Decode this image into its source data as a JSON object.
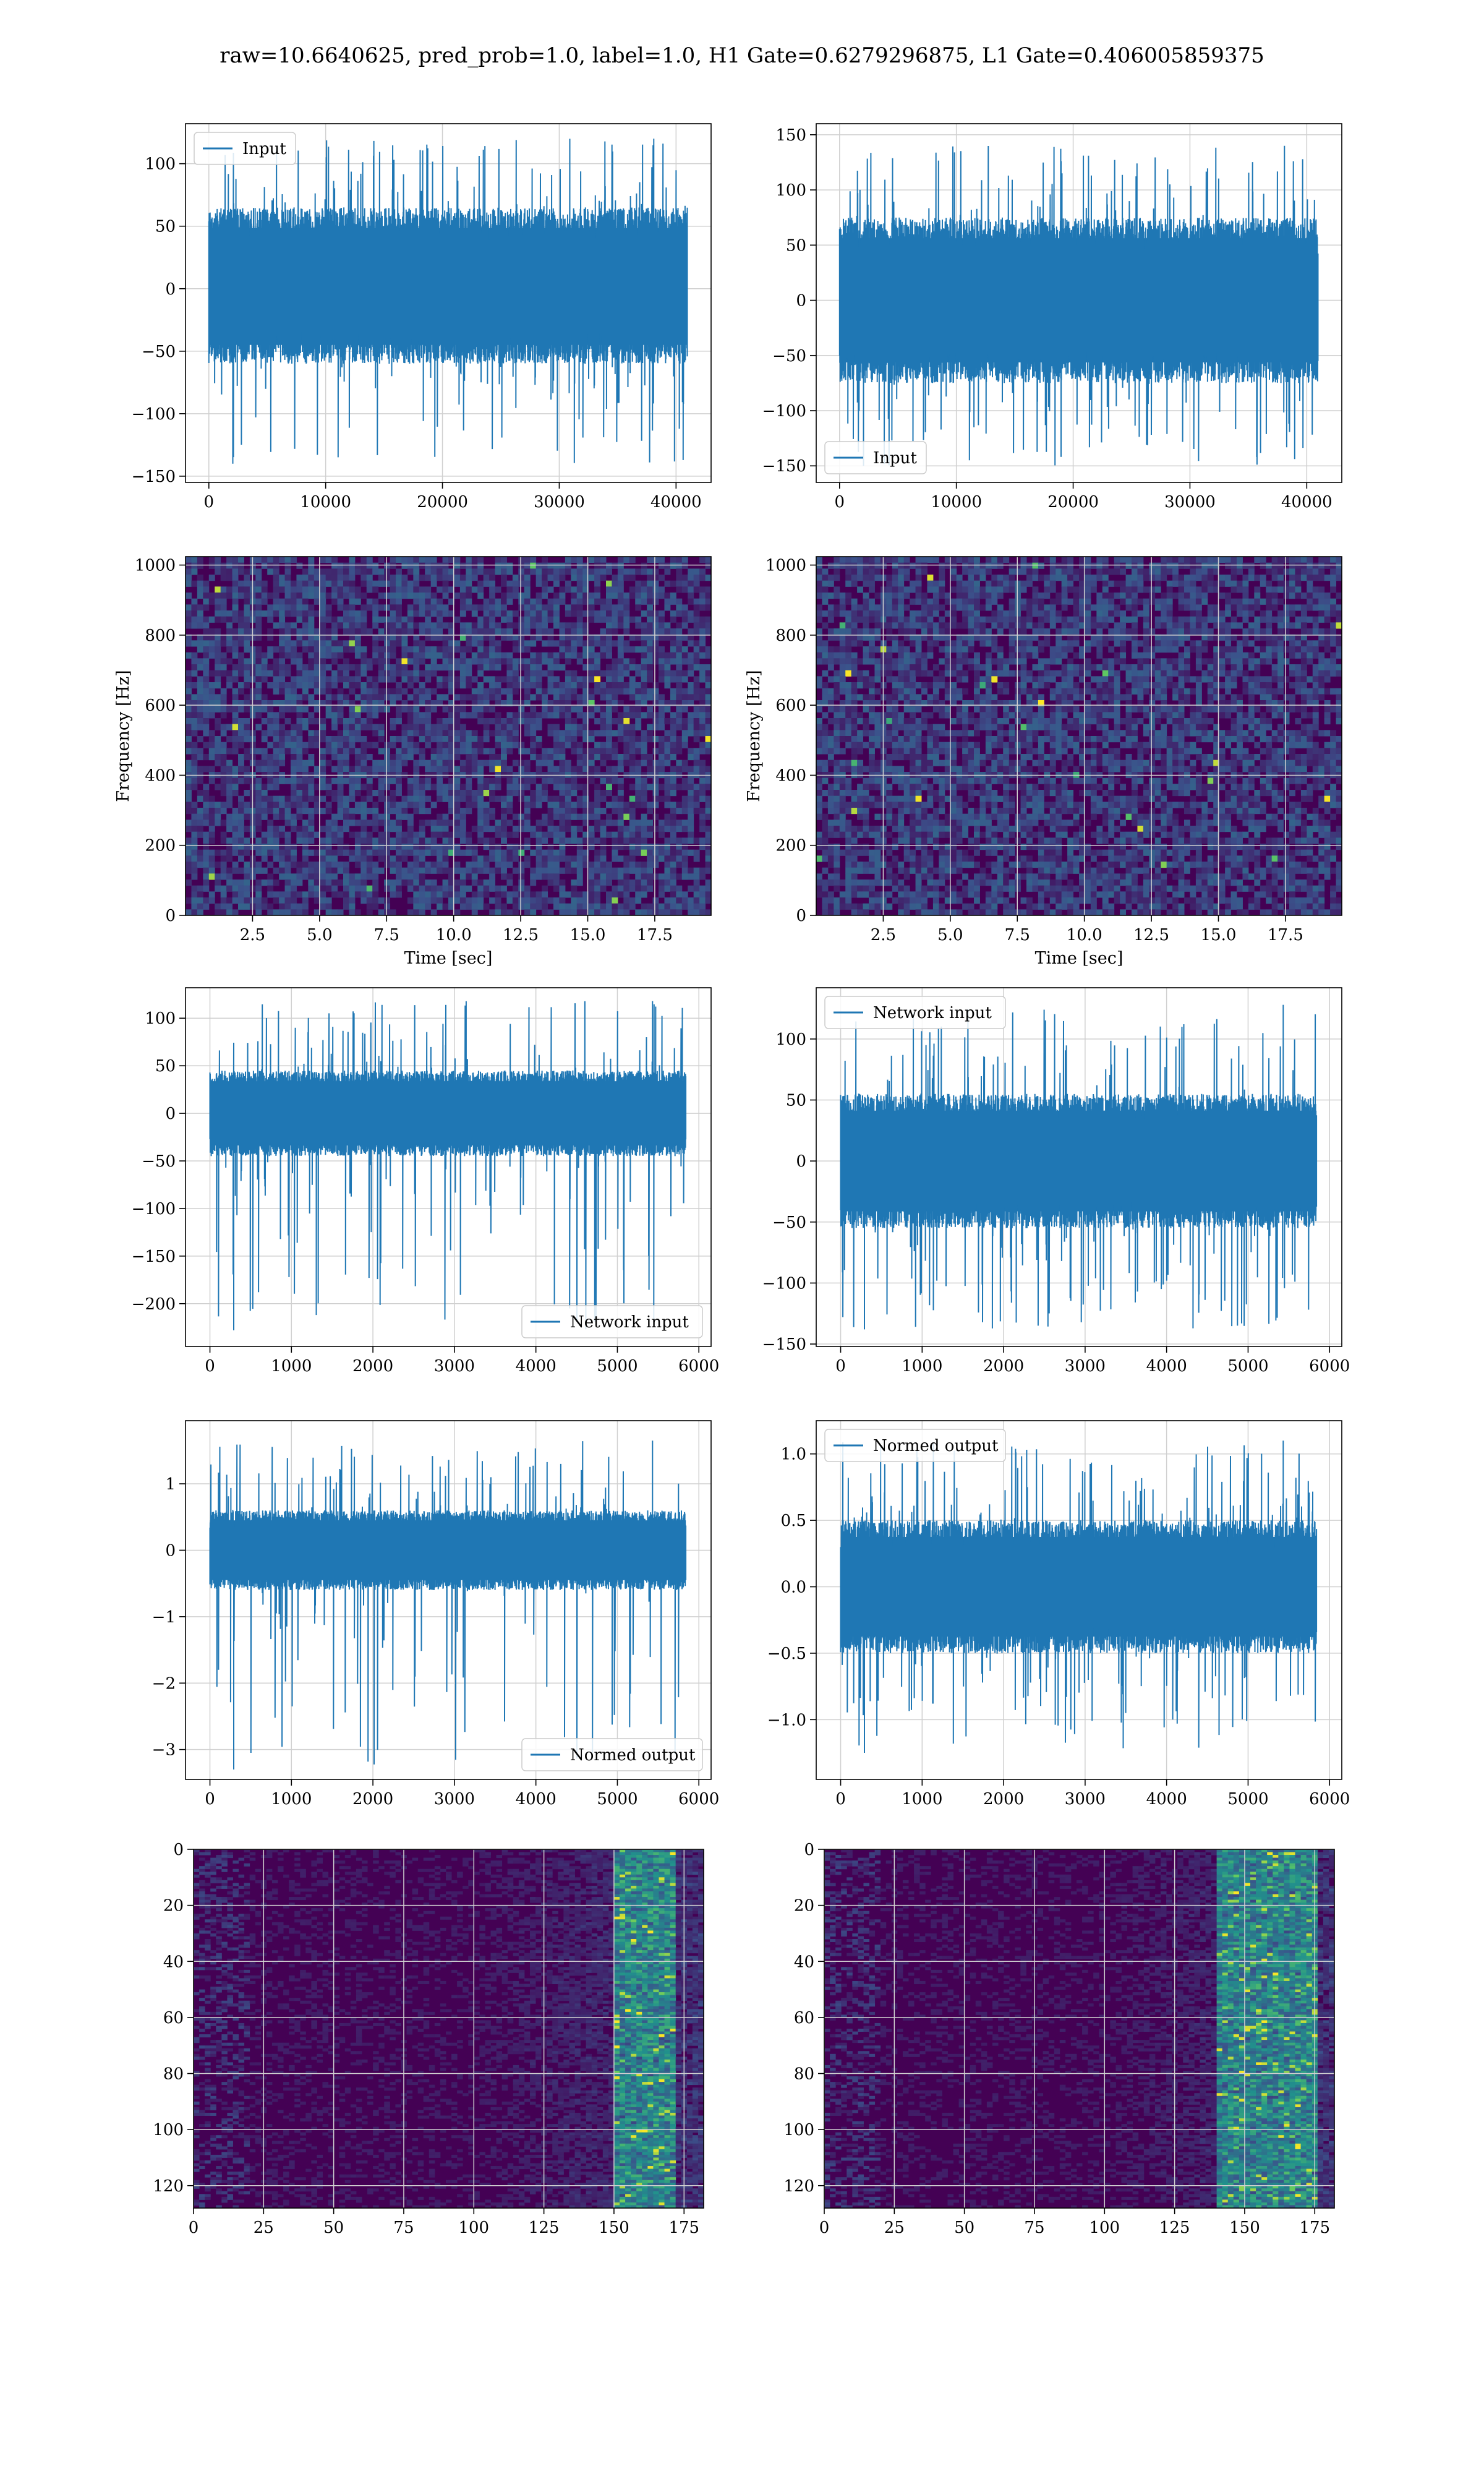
{
  "figure": {
    "suptitle": "raw=10.6640625, pred_prob=1.0, label=1.0, H1 Gate=0.6279296875, L1 Gate=0.406005859375"
  },
  "colors": {
    "line": "#1f77b4",
    "grid": "#d0d0d0",
    "viridis_low": "#440154",
    "viridis_high": "#fde725"
  },
  "chart_data": [
    {
      "id": "r1c1",
      "type": "line",
      "legend": "Input",
      "legend_loc": "upper left",
      "xlim": [
        -2000,
        43000
      ],
      "ylim": [
        -155,
        132
      ],
      "xticks": [
        0,
        10000,
        20000,
        30000,
        40000
      ],
      "yticks": [
        -150,
        -100,
        -50,
        0,
        50,
        100
      ],
      "xlabel": "",
      "ylabel": "",
      "series": [
        {
          "name": "Input",
          "x_range": [
            0,
            40960
          ],
          "band": [
            -60,
            65
          ],
          "spike_range": [
            -140,
            120
          ]
        }
      ]
    },
    {
      "id": "r1c2",
      "type": "line",
      "legend": "Input",
      "legend_loc": "lower left",
      "xlim": [
        -2000,
        43000
      ],
      "ylim": [
        -165,
        160
      ],
      "xticks": [
        0,
        10000,
        20000,
        30000,
        40000
      ],
      "yticks": [
        -150,
        -100,
        -50,
        0,
        50,
        100,
        150
      ],
      "xlabel": "",
      "ylabel": "",
      "series": [
        {
          "name": "Input",
          "x_range": [
            0,
            40960
          ],
          "band": [
            -75,
            75
          ],
          "spike_range": [
            -150,
            140
          ]
        }
      ]
    },
    {
      "id": "r2c1",
      "type": "heatmap",
      "colormap": "viridis",
      "xlim": [
        0,
        19.6
      ],
      "ylim": [
        0,
        1024
      ],
      "xticks": [
        2.5,
        5.0,
        7.5,
        10.0,
        12.5,
        15.0,
        17.5
      ],
      "yticks": [
        0,
        200,
        400,
        600,
        800,
        1000
      ],
      "xlabel": "Time [sec]",
      "ylabel": "Frequency [Hz]"
    },
    {
      "id": "r2c2",
      "type": "heatmap",
      "colormap": "viridis",
      "xlim": [
        0,
        19.6
      ],
      "ylim": [
        0,
        1024
      ],
      "xticks": [
        2.5,
        5.0,
        7.5,
        10.0,
        12.5,
        15.0,
        17.5
      ],
      "yticks": [
        0,
        200,
        400,
        600,
        800,
        1000
      ],
      "xlabel": "Time [sec]",
      "ylabel": "Frequency [Hz]"
    },
    {
      "id": "r3c1",
      "type": "line",
      "legend": "Network input",
      "legend_loc": "lower right",
      "xlim": [
        -300,
        6150
      ],
      "ylim": [
        -245,
        132
      ],
      "xticks": [
        0,
        1000,
        2000,
        3000,
        4000,
        5000,
        6000
      ],
      "yticks": [
        -200,
        -150,
        -100,
        -50,
        0,
        50,
        100
      ],
      "xlabel": "",
      "ylabel": "",
      "series": [
        {
          "name": "Network input",
          "x_range": [
            0,
            5840
          ],
          "band": [
            -45,
            45
          ],
          "spike_range": [
            -228,
            118
          ]
        }
      ]
    },
    {
      "id": "r3c2",
      "type": "line",
      "legend": "Network input",
      "legend_loc": "upper left",
      "xlim": [
        -300,
        6150
      ],
      "ylim": [
        -152,
        142
      ],
      "xticks": [
        0,
        1000,
        2000,
        3000,
        4000,
        5000,
        6000
      ],
      "yticks": [
        -150,
        -100,
        -50,
        0,
        50,
        100
      ],
      "xlabel": "",
      "ylabel": "",
      "series": [
        {
          "name": "Network input",
          "x_range": [
            0,
            5840
          ],
          "band": [
            -55,
            55
          ],
          "spike_range": [
            -138,
            128
          ]
        }
      ]
    },
    {
      "id": "r4c1",
      "type": "line",
      "legend": "Normed output",
      "legend_loc": "lower right",
      "xlim": [
        -300,
        6150
      ],
      "ylim": [
        -3.45,
        1.95
      ],
      "xticks": [
        0,
        1000,
        2000,
        3000,
        4000,
        5000,
        6000
      ],
      "yticks": [
        -3,
        -2,
        -1,
        0,
        1
      ],
      "xlabel": "",
      "ylabel": "",
      "series": [
        {
          "name": "Normed output",
          "x_range": [
            0,
            5840
          ],
          "band": [
            -0.6,
            0.6
          ],
          "spike_range": [
            -3.3,
            1.65
          ]
        }
      ]
    },
    {
      "id": "r4c2",
      "type": "line",
      "legend": "Normed output",
      "legend_loc": "upper left",
      "xlim": [
        -300,
        6150
      ],
      "ylim": [
        -1.45,
        1.25
      ],
      "xticks": [
        0,
        1000,
        2000,
        3000,
        4000,
        5000,
        6000
      ],
      "yticks": [
        -1.0,
        -0.5,
        0.0,
        0.5,
        1.0
      ],
      "xlabel": "",
      "ylabel": "",
      "series": [
        {
          "name": "Normed output",
          "x_range": [
            0,
            5840
          ],
          "band": [
            -0.5,
            0.5
          ],
          "spike_range": [
            -1.25,
            1.1
          ]
        }
      ]
    },
    {
      "id": "r5c1",
      "type": "heatmap",
      "colormap": "viridis",
      "xlim": [
        0,
        182
      ],
      "ylim": [
        128,
        0
      ],
      "xticks": [
        0,
        25,
        50,
        75,
        100,
        125,
        150,
        175
      ],
      "yticks": [
        0,
        20,
        40,
        60,
        80,
        100,
        120
      ],
      "xlabel": "",
      "ylabel": "",
      "hot_columns": [
        150,
        172
      ]
    },
    {
      "id": "r5c2",
      "type": "heatmap",
      "colormap": "viridis",
      "xlim": [
        0,
        182
      ],
      "ylim": [
        128,
        0
      ],
      "xticks": [
        0,
        25,
        50,
        75,
        100,
        125,
        150,
        175
      ],
      "yticks": [
        0,
        20,
        40,
        60,
        80,
        100,
        120
      ],
      "xlabel": "",
      "ylabel": "",
      "hot_columns": [
        140,
        175
      ]
    }
  ]
}
